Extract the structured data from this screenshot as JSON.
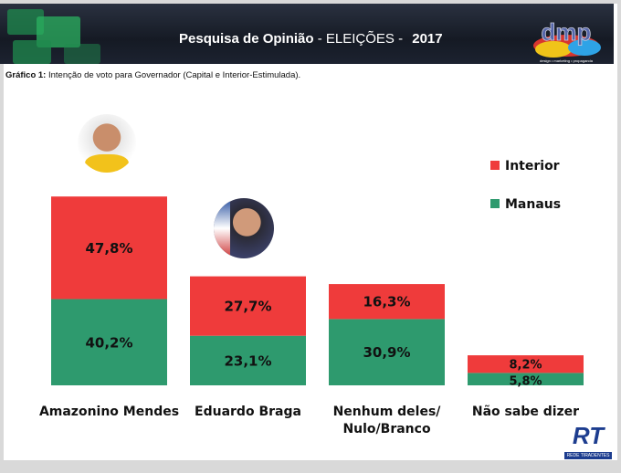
{
  "header": {
    "title_bold": "Pesquisa de Opinião",
    "title_thin": " - ELEIÇÕES - ",
    "year": "2017",
    "logo_text": "dmp",
    "logo_tagline": "design • marketing • propaganda"
  },
  "subtitle": {
    "label": "Gráfico 1:",
    "text": " Intenção de voto para Governador (Capital e Interior-Estimulada)."
  },
  "footer_logo": {
    "text": "RT",
    "tagline": "REDE TIRADENTES"
  },
  "colors": {
    "interior": "#ef3b3b",
    "manaus": "#2e9a6e"
  },
  "chart_data": {
    "type": "bar",
    "stacked": true,
    "title": "Intenção de voto para Governador (Capital e Interior-Estimulada)",
    "categories": [
      "Amazonino Mendes",
      "Eduardo Braga",
      "Nenhum deles/ Nulo/Branco",
      "Não sabe dizer"
    ],
    "series": [
      {
        "name": "Manaus",
        "values": [
          40.2,
          23.1,
          30.9,
          5.8
        ],
        "labels": [
          "40,2%",
          "23,1%",
          "30,9%",
          "5,8%"
        ]
      },
      {
        "name": "Interior",
        "values": [
          47.8,
          27.7,
          16.3,
          8.2
        ],
        "labels": [
          "47,8%",
          "27,7%",
          "16,3%",
          "8,2%"
        ]
      }
    ],
    "legend": [
      "Interior",
      "Manaus"
    ],
    "legend_position": "top-right",
    "grid": false
  }
}
